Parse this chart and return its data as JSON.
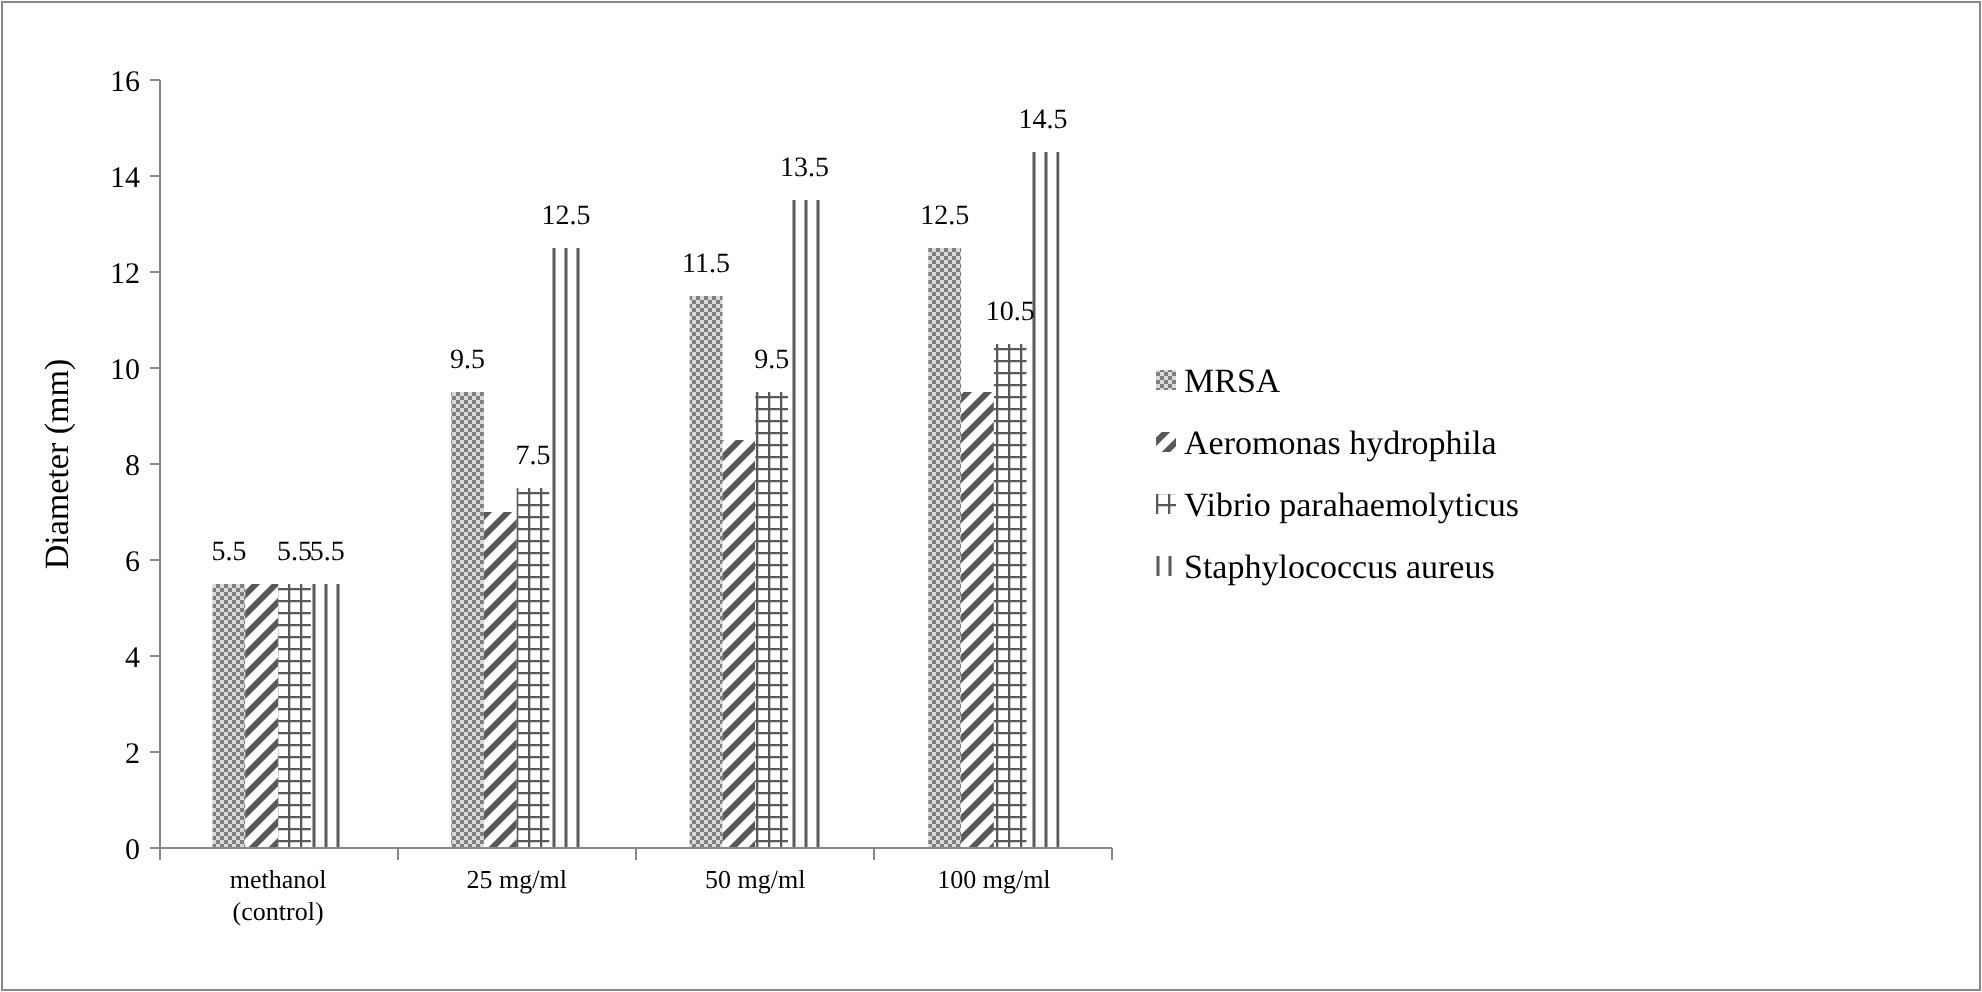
{
  "chart_data": {
    "type": "bar",
    "ylabel": "Diameter (mm)",
    "categories": [
      "methanol (control)",
      "25 mg/ml",
      "50 mg/ml",
      "100 mg/ml"
    ],
    "series": [
      {
        "name": "MRSA",
        "color": "#7f7f7f",
        "values": [
          5.5,
          9.5,
          11.5,
          12.5
        ],
        "value_labels": [
          "5.5",
          "9.5",
          "11.5",
          "12.5"
        ]
      },
      {
        "name": "Aeromonas hydrophila",
        "color": "#595959",
        "values": [
          5.5,
          7,
          8.5,
          9.5
        ],
        "value_labels": [
          null,
          null,
          null,
          null
        ]
      },
      {
        "name": "Vibrio parahaemolyticus",
        "color": "#595959",
        "values": [
          5.5,
          7.5,
          9.5,
          10.5
        ],
        "value_labels": [
          "5.5",
          "7.5",
          "9.5",
          "10.5"
        ]
      },
      {
        "name": "Staphylococcus aureus",
        "color": "#595959",
        "values": [
          5.5,
          12.5,
          13.5,
          14.5
        ],
        "value_labels": [
          "5.5",
          "12.5",
          "13.5",
          "14.5"
        ]
      }
    ],
    "ylim": [
      0,
      16
    ],
    "yticks": [
      0,
      2,
      4,
      6,
      8,
      10,
      12,
      14,
      16
    ],
    "grid": false,
    "legend": "right"
  }
}
